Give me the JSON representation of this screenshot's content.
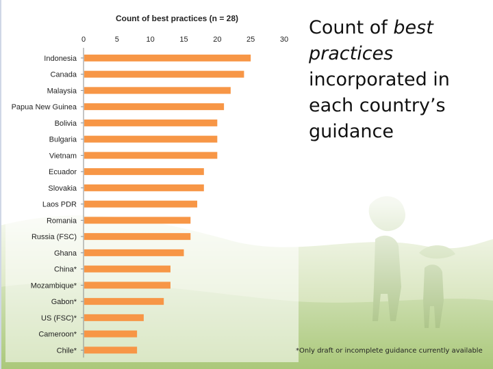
{
  "slide": {
    "heading_parts": {
      "before": "Count of ",
      "emphasis": "best practices",
      "after": " incorporated in each country’s guidance"
    },
    "footnote": "*Only draft or incomplete guidance currently available"
  },
  "colors": {
    "bar": "#f79646",
    "photo_green": "#b7cf86",
    "photo_dark": "#8fae62"
  },
  "chart_data": {
    "type": "bar",
    "orientation": "horizontal",
    "title": "Count of best practices (n = 28)",
    "xlim": [
      0,
      30
    ],
    "xticks": [
      0,
      5,
      10,
      15,
      20,
      25,
      30
    ],
    "axis_position": "top",
    "grid": false,
    "categories": [
      "Indonesia",
      "Canada",
      "Malaysia",
      "Papua New Guinea",
      "Bolivia",
      "Bulgaria",
      "Vietnam",
      "Ecuador",
      "Slovakia",
      "Laos PDR",
      "Romania",
      "Russia (FSC)",
      "Ghana",
      "China*",
      "Mozambique*",
      "Gabon*",
      "US (FSC)*",
      "Cameroon*",
      "Chile*"
    ],
    "values": [
      25,
      24,
      22,
      21,
      20,
      20,
      20,
      18,
      18,
      17,
      16,
      16,
      15,
      13,
      13,
      12,
      9,
      8,
      8
    ]
  }
}
